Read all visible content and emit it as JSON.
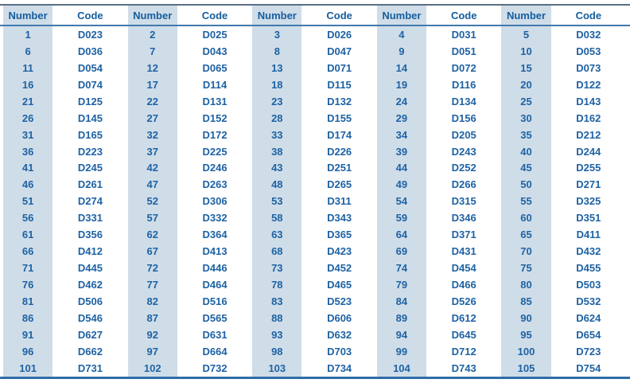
{
  "table": {
    "columns": [
      "Number",
      "Code",
      "Number",
      "Code",
      "Number",
      "Code",
      "Number",
      "Code",
      "Number",
      "Code"
    ],
    "rows": [
      [
        "1",
        "D023",
        "2",
        "D025",
        "3",
        "D026",
        "4",
        "D031",
        "5",
        "D032"
      ],
      [
        "6",
        "D036",
        "7",
        "D043",
        "8",
        "D047",
        "9",
        "D051",
        "10",
        "D053"
      ],
      [
        "11",
        "D054",
        "12",
        "D065",
        "13",
        "D071",
        "14",
        "D072",
        "15",
        "D073"
      ],
      [
        "16",
        "D074",
        "17",
        "D114",
        "18",
        "D115",
        "19",
        "D116",
        "20",
        "D122"
      ],
      [
        "21",
        "D125",
        "22",
        "D131",
        "23",
        "D132",
        "24",
        "D134",
        "25",
        "D143"
      ],
      [
        "26",
        "D145",
        "27",
        "D152",
        "28",
        "D155",
        "29",
        "D156",
        "30",
        "D162"
      ],
      [
        "31",
        "D165",
        "32",
        "D172",
        "33",
        "D174",
        "34",
        "D205",
        "35",
        "D212"
      ],
      [
        "36",
        "D223",
        "37",
        "D225",
        "38",
        "D226",
        "39",
        "D243",
        "40",
        "D244"
      ],
      [
        "41",
        "D245",
        "42",
        "D246",
        "43",
        "D251",
        "44",
        "D252",
        "45",
        "D255"
      ],
      [
        "46",
        "D261",
        "47",
        "D263",
        "48",
        "D265",
        "49",
        "D266",
        "50",
        "D271"
      ],
      [
        "51",
        "D274",
        "52",
        "D306",
        "53",
        "D311",
        "54",
        "D315",
        "55",
        "D325"
      ],
      [
        "56",
        "D331",
        "57",
        "D332",
        "58",
        "D343",
        "59",
        "D346",
        "60",
        "D351"
      ],
      [
        "61",
        "D356",
        "62",
        "D364",
        "63",
        "D365",
        "64",
        "D371",
        "65",
        "D411"
      ],
      [
        "66",
        "D412",
        "67",
        "D413",
        "68",
        "D423",
        "69",
        "D431",
        "70",
        "D432"
      ],
      [
        "71",
        "D445",
        "72",
        "D446",
        "73",
        "D452",
        "74",
        "D454",
        "75",
        "D455"
      ],
      [
        "76",
        "D462",
        "77",
        "D464",
        "78",
        "D465",
        "79",
        "D466",
        "80",
        "D503"
      ],
      [
        "81",
        "D506",
        "82",
        "D516",
        "83",
        "D523",
        "84",
        "D526",
        "85",
        "D532"
      ],
      [
        "86",
        "D546",
        "87",
        "D565",
        "88",
        "D606",
        "89",
        "D612",
        "90",
        "D624"
      ],
      [
        "91",
        "D627",
        "92",
        "D631",
        "93",
        "D632",
        "94",
        "D645",
        "95",
        "D654"
      ],
      [
        "96",
        "D662",
        "97",
        "D664",
        "98",
        "D703",
        "99",
        "D712",
        "100",
        "D723"
      ],
      [
        "101",
        "D731",
        "102",
        "D732",
        "103",
        "D734",
        "104",
        "D743",
        "105",
        "D754"
      ]
    ]
  },
  "colors": {
    "text": "#1e62a3",
    "header_text": "#155d9d",
    "shaded_column": "#cfdde9",
    "top_rule": "#5b6f83",
    "header_rule": "#4279ae",
    "bottom_rule": "#2f6da6"
  }
}
